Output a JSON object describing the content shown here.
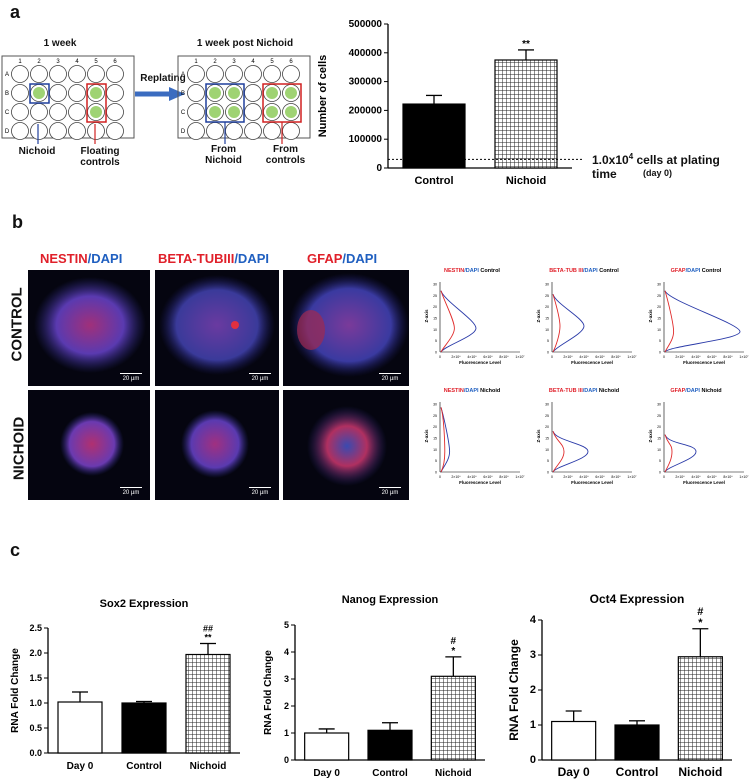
{
  "panel_a": {
    "label": "a",
    "plate1": {
      "title": "1 week",
      "cols": [
        "1",
        "2",
        "3",
        "4",
        "5",
        "6"
      ],
      "rows": [
        "A",
        "B",
        "C",
        "D"
      ],
      "nichoid_label": "Nichoid",
      "floating_label": "Floating\ncontrols"
    },
    "replating_label": "Replating",
    "plate2": {
      "title": "1 week post Nichoid",
      "cols": [
        "1",
        "2",
        "3",
        "4",
        "5",
        "6"
      ],
      "rows": [
        "A",
        "B",
        "C",
        "D"
      ],
      "from_nichoid_label": "From\nNichoid",
      "from_controls_label": "From\ncontrols"
    },
    "plating_note_main": "1.0x10",
    "plating_note_exp": "4",
    "plating_note_rest": " cells at plating time",
    "plating_note_sub": "(day 0)"
  },
  "panel_b": {
    "label": "b",
    "stains": [
      {
        "red": "NESTIN",
        "blue": "/DAPI"
      },
      {
        "red": "BETA-TUBIII",
        "blue": "/DAPI"
      },
      {
        "red": "GFAP",
        "blue": "/DAPI"
      }
    ],
    "rows": [
      "CONTROL",
      "NICHOID"
    ],
    "scale_bar": "20 µm",
    "profile_titles": [
      {
        "red": "NESTIN",
        "blue": "/DAPI",
        "cond": " Control"
      },
      {
        "red": "BETA-TUB III",
        "blue": "/DAPI",
        "cond": " Control"
      },
      {
        "red": "GFAP",
        "blue": "/DAPI",
        "cond": "  Control"
      },
      {
        "red": "NESTIN",
        "blue": "/DAPI",
        "cond": " Nichoid"
      },
      {
        "red": "BETA-TUB III",
        "blue": "/DAPI",
        "cond": " Nichoid"
      },
      {
        "red": "GFAP",
        "blue": "/DAPI",
        "cond": " Nichoid"
      }
    ],
    "profile_xlabel": "Fluorescence Level",
    "profile_ylabel": "Z-axis",
    "profile_xticks": [
      "0",
      "2×10⁶",
      "4×10⁶",
      "6×10⁶",
      "8×10⁶",
      "1×10⁷"
    ],
    "profile_yticks": [
      "0",
      "5",
      "10",
      "15",
      "20",
      "25",
      "30"
    ]
  },
  "panel_c": {
    "label": "c"
  },
  "chart_data": [
    {
      "id": "cell-count",
      "type": "bar",
      "categories": [
        "Control",
        "Nichoid"
      ],
      "values": [
        222000,
        375000
      ],
      "errors": [
        30000,
        35000
      ],
      "ylabel": "Number of cells",
      "ylim": [
        0,
        500000
      ],
      "yticks": [
        "0",
        "100000",
        "200000",
        "300000",
        "400000",
        "500000"
      ],
      "reference_line": 30000,
      "annotations": [
        "",
        "**"
      ]
    },
    {
      "id": "sox2",
      "type": "bar",
      "title": "Sox2 Expression",
      "ylabel": "RNA Fold Change",
      "categories": [
        "Day 0",
        "Control",
        "Nichoid"
      ],
      "values": [
        1.02,
        1.0,
        1.97
      ],
      "errors": [
        0.2,
        0.03,
        0.22
      ],
      "ylim": [
        0,
        2.5
      ],
      "yticks": [
        "0.0",
        "0.5",
        "1.0",
        "1.5",
        "2.0",
        "2.5"
      ],
      "annotations": [
        "",
        "",
        "##\n**"
      ]
    },
    {
      "id": "nanog",
      "type": "bar",
      "title": "Nanog Expression",
      "ylabel": "RNA Fold Change",
      "categories": [
        "Day 0",
        "Control",
        "Nichoid"
      ],
      "values": [
        1.0,
        1.1,
        3.1
      ],
      "errors": [
        0.15,
        0.28,
        0.72
      ],
      "ylim": [
        0,
        5
      ],
      "yticks": [
        "0",
        "1",
        "2",
        "3",
        "4",
        "5"
      ],
      "annotations": [
        "",
        "",
        "#\n*"
      ]
    },
    {
      "id": "oct4",
      "type": "bar",
      "title": "Oct4 Expression",
      "ylabel": "RNA Fold Change",
      "categories": [
        "Day 0",
        "Control",
        "Nichoid"
      ],
      "values": [
        1.1,
        1.0,
        2.95
      ],
      "errors": [
        0.3,
        0.12,
        0.8
      ],
      "ylim": [
        0,
        4
      ],
      "yticks": [
        "0",
        "1",
        "2",
        "3",
        "4"
      ],
      "annotations": [
        "",
        "",
        "#\n*"
      ]
    }
  ]
}
